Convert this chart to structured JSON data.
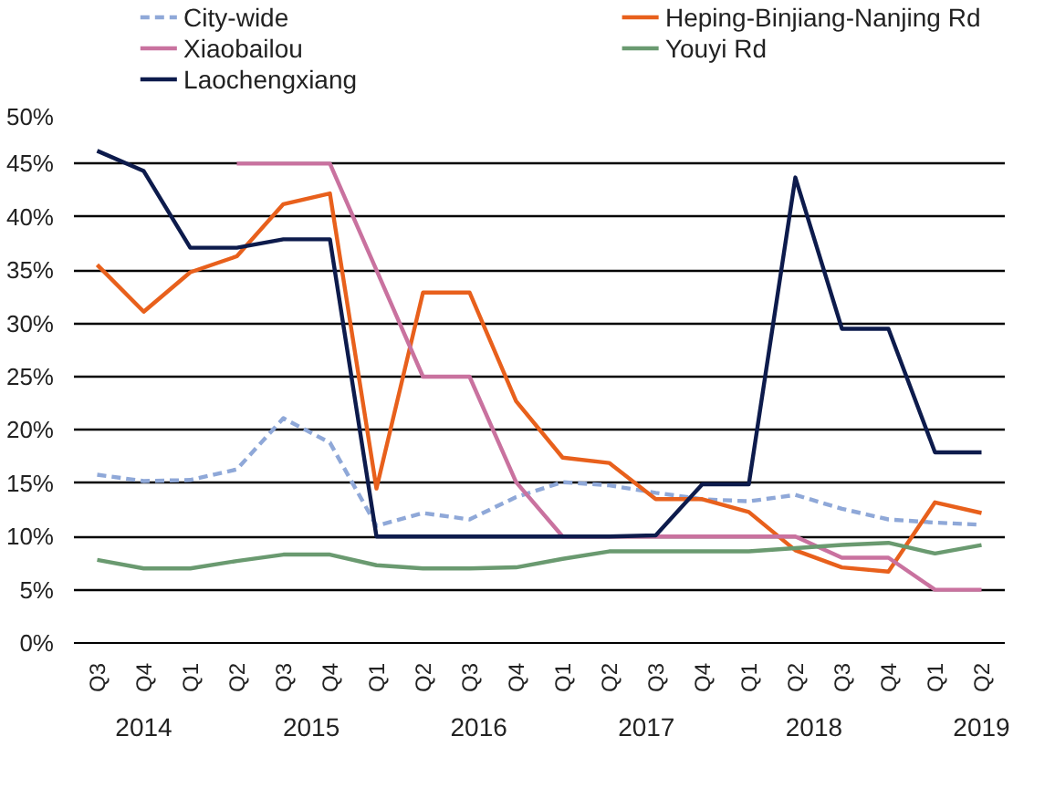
{
  "chart_data": {
    "type": "line",
    "categories": [
      "Q3",
      "Q4",
      "Q1",
      "Q2",
      "Q3",
      "Q4",
      "Q1",
      "Q2",
      "Q3",
      "Q4",
      "Q1",
      "Q2",
      "Q3",
      "Q4",
      "Q1",
      "Q2",
      "Q3",
      "Q4",
      "Q1",
      "Q2"
    ],
    "annotations": [
      "2014",
      "2015",
      "2016",
      "2017",
      "2018",
      "2019"
    ],
    "ylim": [
      0,
      50
    ],
    "yticks": [
      {
        "value": 0,
        "label": "0%"
      },
      {
        "value": 5,
        "label": "5%"
      },
      {
        "value": 10,
        "label": "10%"
      },
      {
        "value": 15,
        "label": "15%"
      },
      {
        "value": 20,
        "label": "20%"
      },
      {
        "value": 25,
        "label": "25%"
      },
      {
        "value": 30,
        "label": "30%"
      },
      {
        "value": 35,
        "label": "35%"
      },
      {
        "value": 40,
        "label": "40%"
      },
      {
        "value": 45,
        "label": "45%"
      },
      {
        "value": 50,
        "label": "50%"
      }
    ],
    "grid": "y",
    "legend": "top",
    "series": [
      {
        "name": "City-wide",
        "color": "#8fa8d8",
        "line_style": "dashed",
        "values": [
          15.8,
          15.2,
          15.3,
          16.3,
          21.1,
          18.8,
          11.0,
          12.2,
          11.6,
          13.7,
          15.1,
          14.8,
          14.1,
          13.5,
          13.3,
          13.9,
          12.6,
          11.6,
          11.3,
          11.1
        ]
      },
      {
        "name": "Heping-Binjiang-Nanjing Rd",
        "color": "#e8601c",
        "values": [
          35.5,
          31.1,
          34.8,
          36.3,
          41.2,
          42.2,
          14.5,
          32.9,
          32.9,
          22.7,
          17.4,
          16.9,
          13.5,
          13.5,
          12.3,
          8.7,
          7.1,
          6.7,
          13.2,
          12.2
        ]
      },
      {
        "name": "Xiaobailou",
        "color": "#c9729f",
        "values": [
          null,
          null,
          null,
          45,
          45,
          45,
          35,
          25,
          25,
          15.1,
          10,
          10,
          10,
          10,
          10,
          10,
          8,
          8,
          5,
          5
        ]
      },
      {
        "name": "Youyi Rd",
        "color": "#6a9a70",
        "values": [
          7.8,
          7.0,
          7.0,
          7.7,
          8.3,
          8.3,
          7.3,
          7.0,
          7.0,
          7.1,
          7.9,
          8.6,
          8.6,
          8.6,
          8.6,
          8.9,
          9.2,
          9.4,
          8.4,
          9.2
        ]
      },
      {
        "name": "Laochengxiang",
        "color": "#0d1b4c",
        "values": [
          46.2,
          44.3,
          37.1,
          37.1,
          37.9,
          37.9,
          10,
          10,
          10,
          10,
          10,
          10,
          10.1,
          14.9,
          14.9,
          43.7,
          29.5,
          29.5,
          17.9,
          17.9
        ]
      }
    ]
  }
}
